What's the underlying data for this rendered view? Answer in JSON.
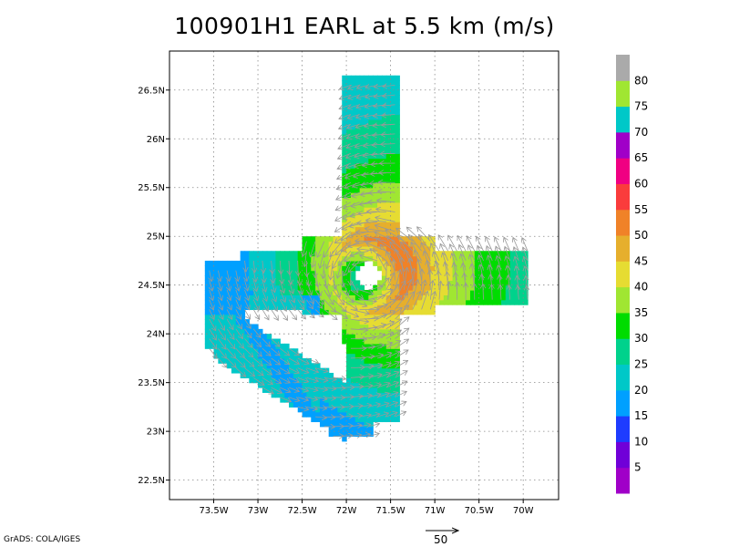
{
  "chart_data": {
    "type": "heatmap",
    "title": "100901H1 EARL at 5.5 km (m/s)",
    "xlim": [
      -74.0,
      -69.6
    ],
    "ylim": [
      22.3,
      26.9
    ],
    "x_ticks": [
      {
        "value": -73.5,
        "label": "73.5W"
      },
      {
        "value": -73.0,
        "label": "73W"
      },
      {
        "value": -72.5,
        "label": "72.5W"
      },
      {
        "value": -72.0,
        "label": "72W"
      },
      {
        "value": -71.5,
        "label": "71.5W"
      },
      {
        "value": -71.0,
        "label": "71W"
      },
      {
        "value": -70.5,
        "label": "70.5W"
      },
      {
        "value": -70.0,
        "label": "70W"
      }
    ],
    "y_ticks": [
      {
        "value": 22.5,
        "label": "22.5N"
      },
      {
        "value": 23.0,
        "label": "23N"
      },
      {
        "value": 23.5,
        "label": "23.5N"
      },
      {
        "value": 24.0,
        "label": "24N"
      },
      {
        "value": 24.5,
        "label": "24.5N"
      },
      {
        "value": 25.0,
        "label": "25N"
      },
      {
        "value": 25.5,
        "label": "25.5N"
      },
      {
        "value": 26.0,
        "label": "26N"
      },
      {
        "value": 26.5,
        "label": "26.5N"
      }
    ],
    "grid": true,
    "colorbar": {
      "placement": "right",
      "labels": [
        "5",
        "10",
        "15",
        "20",
        "25",
        "30",
        "35",
        "40",
        "45",
        "50",
        "55",
        "60",
        "65",
        "70",
        "75",
        "80"
      ],
      "colors": [
        "#a000c8",
        "#7000d8",
        "#1e3cff",
        "#00a0ff",
        "#00c8c8",
        "#00d28c",
        "#00dc00",
        "#a0e632",
        "#e6dc32",
        "#e6af2d",
        "#f08228",
        "#fa3c3c",
        "#f00082",
        "#a000c8",
        "#00c8c8",
        "#a0e632",
        "#aaaaaa"
      ]
    },
    "storm_center": {
      "lon": -71.75,
      "lat": 24.6
    },
    "vector_reference": {
      "speed": 50,
      "label": "50"
    }
  },
  "footer": {
    "credit": "GrADS: COLA/IGES"
  }
}
